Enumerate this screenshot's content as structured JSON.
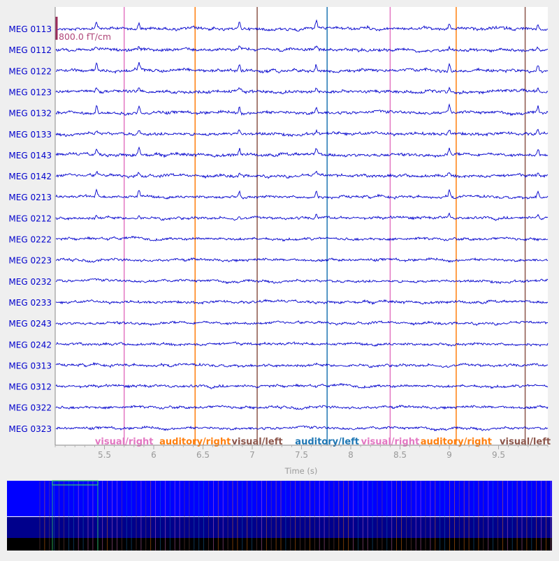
{
  "chart_data": {
    "type": "line",
    "xlabel": "Time (s)",
    "ylabel": "",
    "xlim": [
      5.0,
      10.0
    ],
    "x_ticks": [
      {
        "value": 5.5,
        "label": "5.5"
      },
      {
        "value": 6.0,
        "label": "6"
      },
      {
        "value": 6.5,
        "label": "6.5"
      },
      {
        "value": 7.0,
        "label": "7"
      },
      {
        "value": 7.5,
        "label": "7.5"
      },
      {
        "value": 8.0,
        "label": "8"
      },
      {
        "value": 8.5,
        "label": "8.5"
      },
      {
        "value": 9.0,
        "label": "9"
      },
      {
        "value": 9.5,
        "label": "9.5"
      }
    ],
    "scalebar_label": "800.0 fT/cm",
    "channel_color": "#0000cc",
    "channels": [
      "MEG 0113",
      "MEG 0112",
      "MEG 0122",
      "MEG 0123",
      "MEG 0132",
      "MEG 0133",
      "MEG 0143",
      "MEG 0142",
      "MEG 0213",
      "MEG 0212",
      "MEG 0222",
      "MEG 0223",
      "MEG 0232",
      "MEG 0233",
      "MEG 0243",
      "MEG 0242",
      "MEG 0313",
      "MEG 0312",
      "MEG 0322",
      "MEG 0323"
    ],
    "events": [
      {
        "time": 5.7,
        "label": "visual/right",
        "color": "#e377c2"
      },
      {
        "time": 6.42,
        "label": "auditory/right",
        "color": "#ff7f0e"
      },
      {
        "time": 7.05,
        "label": "visual/left",
        "color": "#8c564b"
      },
      {
        "time": 7.76,
        "label": "auditory/left",
        "color": "#1f77b4"
      },
      {
        "time": 8.4,
        "label": "visual/right",
        "color": "#e377c2"
      },
      {
        "time": 9.07,
        "label": "auditory/right",
        "color": "#ff7f0e"
      },
      {
        "time": 9.77,
        "label": "visual/left",
        "color": "#8c564b"
      }
    ]
  },
  "overview": {
    "bar_colors": [
      "#0000ff",
      "#00008c",
      "#000000"
    ],
    "event_colors": [
      "#e377c2",
      "#ff7f0e",
      "#8c564b",
      "#1f77b4"
    ]
  }
}
